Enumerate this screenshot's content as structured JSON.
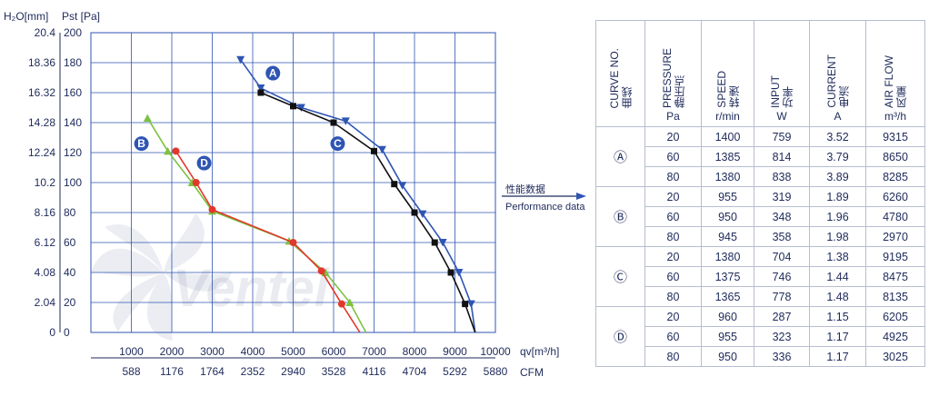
{
  "chart_data": {
    "type": "line",
    "y_axis_left_title": "H₂O[mm]",
    "y_axis_right_title": "Pst [Pa]",
    "x_axis_title_top": "qv[m³/h]",
    "x_axis_title_bottom": "CFM",
    "ylim": [
      0,
      200
    ],
    "xlim": [
      0,
      10000
    ],
    "y_pa_ticks": [
      "0",
      "20",
      "40",
      "60",
      "80",
      "100",
      "120",
      "140",
      "160",
      "180",
      "200"
    ],
    "y_h2o_ticks": [
      "0",
      "2.04",
      "4.08",
      "6.12",
      "8.16",
      "10.2",
      "12.24",
      "14.28",
      "16.32",
      "18.36",
      "20.4"
    ],
    "x_m3h_ticks": [
      "1000",
      "2000",
      "3000",
      "4000",
      "5000",
      "6000",
      "7000",
      "8000",
      "9000",
      "10000"
    ],
    "x_cfm_ticks": [
      "588",
      "1176",
      "1764",
      "2352",
      "2940",
      "3528",
      "4116",
      "4704",
      "5292",
      "5880"
    ],
    "grid": true,
    "series": [
      {
        "name": "A",
        "color": "#2f55b3",
        "marker": "triangle-down",
        "x": [
          3700,
          4200,
          5200,
          6300,
          7200,
          7700,
          8200,
          8700,
          9100,
          9400,
          9500
        ],
        "y": [
          182,
          163,
          150,
          141,
          122,
          98,
          79,
          60,
          40,
          19,
          0
        ]
      },
      {
        "name": "B",
        "color": "#7cc242",
        "marker": "triangle",
        "x": [
          1400,
          1900,
          2500,
          3000,
          4900,
          5800,
          6400,
          6800
        ],
        "y": [
          143,
          121,
          100,
          81,
          61,
          40,
          20,
          0
        ]
      },
      {
        "name": "C",
        "color": "#111111",
        "marker": "square",
        "x": [
          4200,
          5000,
          6000,
          7000,
          7500,
          8000,
          8500,
          8900,
          9250,
          9500
        ],
        "y": [
          160,
          151,
          140,
          121,
          99,
          80,
          60,
          40,
          19,
          0
        ]
      },
      {
        "name": "D",
        "color": "#e2382b",
        "marker": "circle",
        "x": [
          2100,
          2600,
          3000,
          5000,
          5700,
          6200,
          6650
        ],
        "y": [
          121,
          100,
          82,
          60,
          41,
          19,
          0
        ]
      }
    ]
  },
  "watermark_text": "Ventel",
  "arrow": {
    "label_top": "性能数据",
    "label_bottom": "Performance data"
  },
  "table": {
    "headers": [
      {
        "en": "CURVE NO.",
        "cn": "曲线",
        "unit": ""
      },
      {
        "en": "PRESSURE",
        "cn": "静压点",
        "unit": "Pa"
      },
      {
        "en": "SPEED",
        "cn": "转速",
        "unit": "r/min"
      },
      {
        "en": "INPUT",
        "cn": "功率",
        "unit": "W"
      },
      {
        "en": "CURRENT",
        "cn": "电流",
        "unit": "A"
      },
      {
        "en": "AIR FLOW",
        "cn": "风量",
        "unit": "m³/h"
      }
    ],
    "groups": [
      {
        "curve": "Ⓐ",
        "rows": [
          [
            "20",
            "1400",
            "759",
            "3.52",
            "9315"
          ],
          [
            "60",
            "1385",
            "814",
            "3.79",
            "8650"
          ],
          [
            "80",
            "1380",
            "838",
            "3.89",
            "8285"
          ]
        ]
      },
      {
        "curve": "Ⓑ",
        "rows": [
          [
            "20",
            "955",
            "319",
            "1.89",
            "6260"
          ],
          [
            "60",
            "950",
            "348",
            "1.96",
            "4780"
          ],
          [
            "80",
            "945",
            "358",
            "1.98",
            "2970"
          ]
        ]
      },
      {
        "curve": "Ⓒ",
        "rows": [
          [
            "20",
            "1380",
            "704",
            "1.38",
            "9195"
          ],
          [
            "60",
            "1375",
            "746",
            "1.44",
            "8475"
          ],
          [
            "80",
            "1365",
            "778",
            "1.48",
            "8135"
          ]
        ]
      },
      {
        "curve": "Ⓓ",
        "rows": [
          [
            "20",
            "960",
            "287",
            "1.15",
            "6205"
          ],
          [
            "60",
            "955",
            "323",
            "1.17",
            "4925"
          ],
          [
            "80",
            "950",
            "336",
            "1.17",
            "3025"
          ]
        ]
      }
    ]
  }
}
